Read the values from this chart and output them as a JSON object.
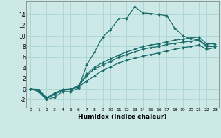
{
  "xlabel": "Humidex (Indice chaleur)",
  "ylabel": "",
  "xlim": [
    -0.5,
    23.5
  ],
  "ylim": [
    -3.5,
    16.5
  ],
  "background_color": "#cce9e7",
  "grid_color": "#aad4d0",
  "line_color": "#1a6b6b",
  "series": [
    [
      0,
      -0.5,
      -2.0,
      -1.5,
      -0.5,
      -0.5,
      0.2,
      4.5,
      7.0,
      9.8,
      11.2,
      13.2,
      13.3,
      15.5,
      14.3,
      14.2,
      14.0,
      13.8,
      11.5,
      10.0,
      9.5,
      9.2,
      8.2,
      8.0
    ],
    [
      0,
      -0.2,
      -1.8,
      -1.0,
      -0.2,
      -0.1,
      0.5,
      2.5,
      3.8,
      4.5,
      5.2,
      6.0,
      6.5,
      7.0,
      7.5,
      7.8,
      8.0,
      8.4,
      8.6,
      8.8,
      9.0,
      9.2,
      8.0,
      8.0
    ],
    [
      0,
      -0.1,
      -1.6,
      -0.8,
      -0.1,
      0.0,
      0.7,
      2.8,
      4.1,
      5.0,
      5.7,
      6.4,
      7.0,
      7.5,
      8.0,
      8.3,
      8.5,
      8.9,
      9.2,
      9.4,
      9.6,
      9.8,
      8.5,
      8.5
    ],
    [
      0,
      -0.3,
      -1.7,
      -0.9,
      -0.3,
      -0.1,
      0.4,
      1.5,
      2.5,
      3.5,
      4.2,
      4.9,
      5.4,
      5.8,
      6.2,
      6.5,
      6.8,
      7.2,
      7.5,
      7.8,
      8.0,
      8.3,
      7.5,
      7.8
    ]
  ],
  "xticks": [
    0,
    1,
    2,
    3,
    4,
    5,
    6,
    7,
    8,
    9,
    10,
    11,
    12,
    13,
    14,
    15,
    16,
    17,
    18,
    19,
    20,
    21,
    22,
    23
  ],
  "yticks": [
    -2,
    0,
    2,
    4,
    6,
    8,
    10,
    12,
    14
  ],
  "markersize": 2.0,
  "linewidth": 0.9
}
